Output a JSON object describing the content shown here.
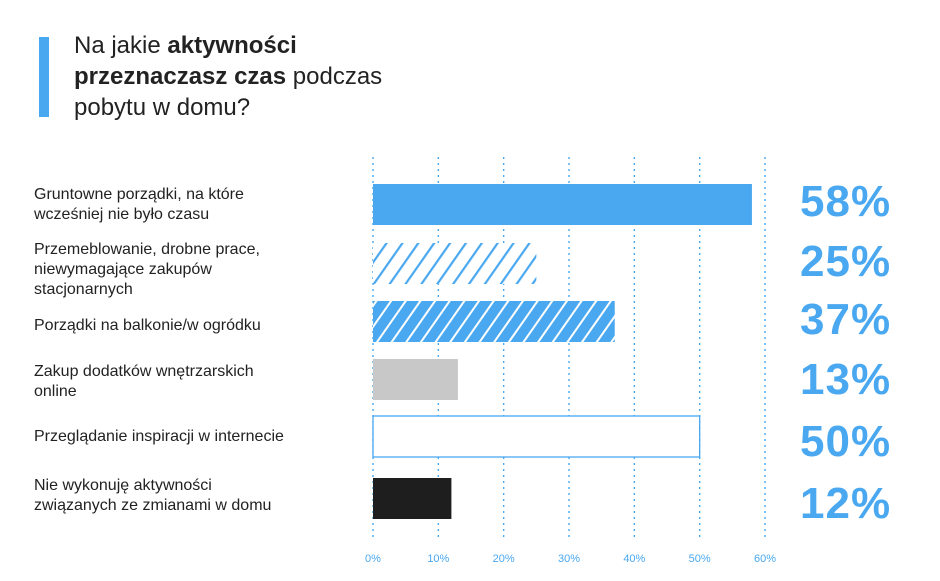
{
  "title": {
    "part1": "Na jakie ",
    "bold1": "aktywności",
    "bold2": "przeznaczasz czas",
    "part2": " podczas",
    "line3": "pobytu w domu?"
  },
  "colors": {
    "accent": "#4aa8f0",
    "gray": "#c8c8c8",
    "black": "#1e1e1e"
  },
  "chart_data": {
    "type": "bar",
    "orientation": "horizontal",
    "categories": [
      [
        "Gruntowne porządki, na które",
        "wcześniej nie było czasu"
      ],
      [
        "Przemeblowanie, drobne prace,",
        "niewymagające zakupów",
        "stacjonarnych"
      ],
      [
        "Porządki na balkonie/w ogródku"
      ],
      [
        "Zakup dodatków wnętrzarskich",
        "online"
      ],
      [
        "Przeglądanie inspiracji w internecie"
      ],
      [
        "Nie wykonuję aktywności",
        "związanych ze zmianami w domu"
      ]
    ],
    "values": [
      58,
      25,
      37,
      13,
      50,
      12
    ],
    "value_labels": [
      "58%",
      "25%",
      "37%",
      "13%",
      "50%",
      "12%"
    ],
    "bar_styles": [
      "solid-blue",
      "hatched-light",
      "hatched-dense",
      "gray",
      "outline",
      "black"
    ],
    "xlim": [
      0,
      60
    ],
    "xticks": [
      "0%",
      "10%",
      "20%",
      "30%",
      "40%",
      "50%",
      "60%"
    ],
    "grid": "dotted-ticks"
  }
}
